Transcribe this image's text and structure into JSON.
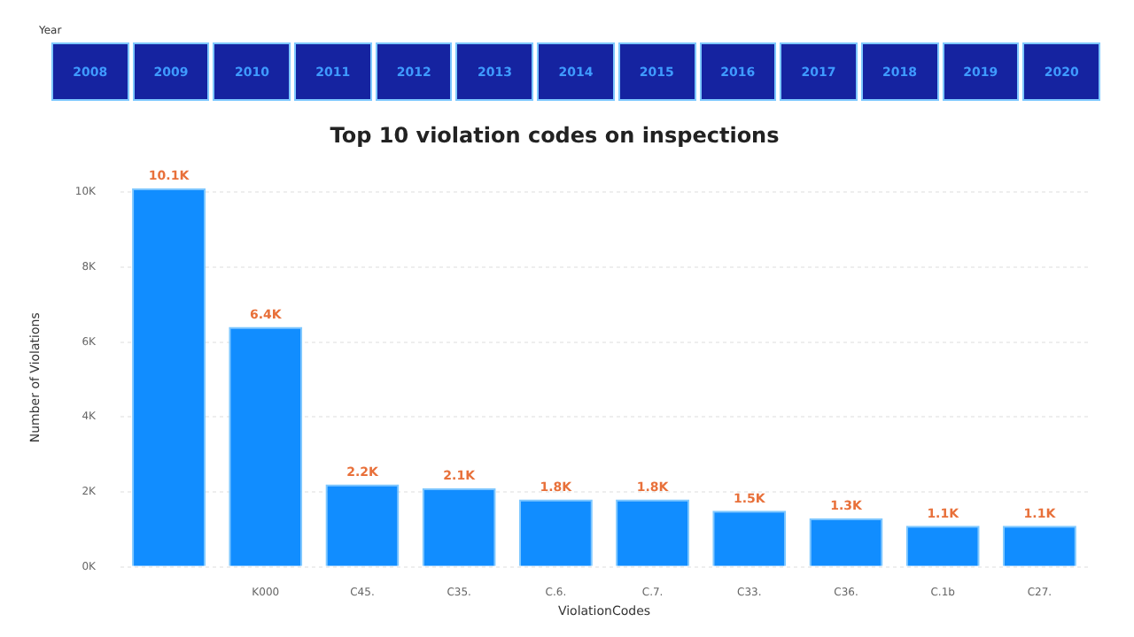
{
  "chart_data": {
    "type": "bar",
    "title": "Top 10 violation codes on inspections",
    "xlabel": "ViolationCodes",
    "ylabel": "Number of Violations",
    "annotations": [
      "Year",
      "2008",
      "2009",
      "2010",
      "2011",
      "2012",
      "2013",
      "2014",
      "2015",
      "2016",
      "2017",
      "2018",
      "2019",
      "2020"
    ],
    "categories": [
      null,
      "K000",
      "C45.",
      "C35.",
      "C.6.",
      "C.7.",
      "C33.",
      "C36.",
      "C.1b",
      "C27."
    ],
    "values": [
      10100,
      6400,
      2200,
      2100,
      1800,
      1800,
      1500,
      1300,
      1100,
      1100
    ],
    "value_labels": [
      "10.1K",
      "6.4K",
      "2.2K",
      "2.1K",
      "1.8K",
      "1.8K",
      "1.5K",
      "1.3K",
      "1.1K",
      "1.1K"
    ],
    "color": "#118dff",
    "ylim": [
      0,
      10100
    ],
    "yticks": [
      {
        "value": 0,
        "label": "0K"
      },
      {
        "value": 2000,
        "label": "2K"
      },
      {
        "value": 4000,
        "label": "4K"
      },
      {
        "value": 6000,
        "label": "6K"
      },
      {
        "value": 8000,
        "label": "8K"
      },
      {
        "value": 10000,
        "label": "10K"
      }
    ],
    "grid": "y"
  }
}
